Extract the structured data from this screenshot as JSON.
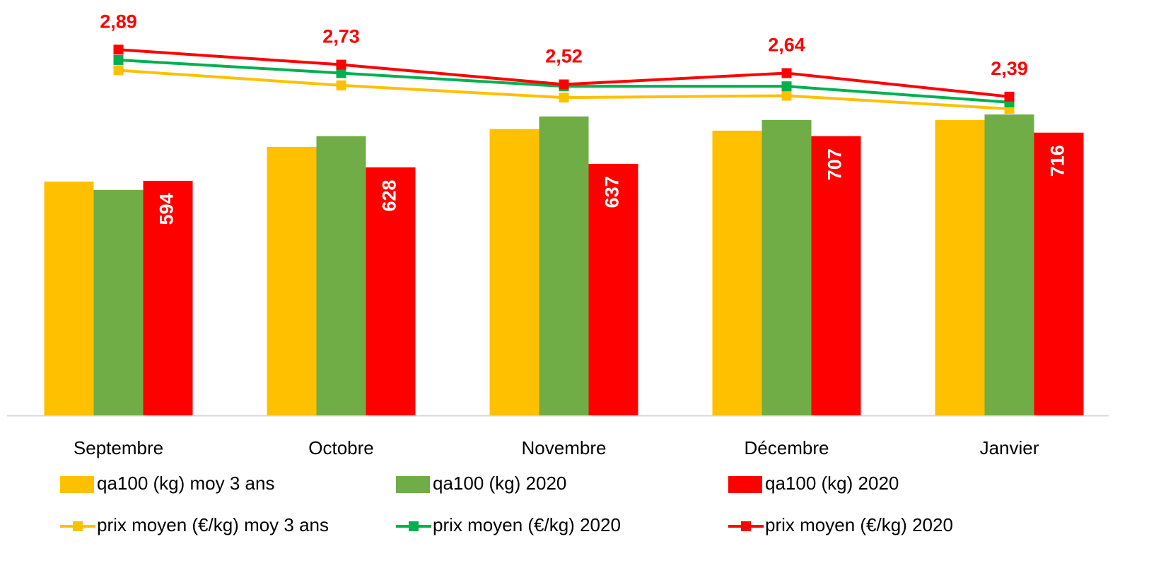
{
  "chart_data": {
    "type": "bar",
    "categories": [
      "Septembre",
      "Octobre",
      "Novembre",
      "Décembre",
      "Janvier"
    ],
    "ylim": [
      0,
      1000
    ],
    "y2lim": [
      -1,
      3.2
    ],
    "series": [
      {
        "name": "qa100 (kg) moy 3 ans",
        "type": "bar",
        "color": "#ffc000",
        "values": [
          592,
          680,
          725,
          721,
          748
        ]
      },
      {
        "name": "qa100 (kg) 2020",
        "type": "bar",
        "color": "#70ad47",
        "values": [
          571,
          707,
          757,
          748,
          762
        ]
      },
      {
        "name": "qa100 (kg) 2020",
        "type": "bar",
        "color": "#ff0000",
        "values": [
          594,
          628,
          637,
          707,
          716
        ],
        "labels": true
      },
      {
        "name": "prix moyen (€/kg) moy 3 ans",
        "type": "line",
        "axis": "y2",
        "color": "#ffc000",
        "values": [
          2.67,
          2.51,
          2.38,
          2.4,
          2.26
        ]
      },
      {
        "name": "prix moyen (€/kg) 2020",
        "type": "line",
        "axis": "y2",
        "color": "#00b050",
        "values": [
          2.78,
          2.64,
          2.5,
          2.5,
          2.33
        ]
      },
      {
        "name": "prix moyen (€/kg) 2020",
        "type": "line",
        "axis": "y2",
        "color": "#ff0000",
        "values": [
          2.89,
          2.73,
          2.52,
          2.64,
          2.39
        ],
        "value_labels": [
          "2,89",
          "2,73",
          "2,52",
          "2,64",
          "2,39"
        ]
      }
    ]
  }
}
